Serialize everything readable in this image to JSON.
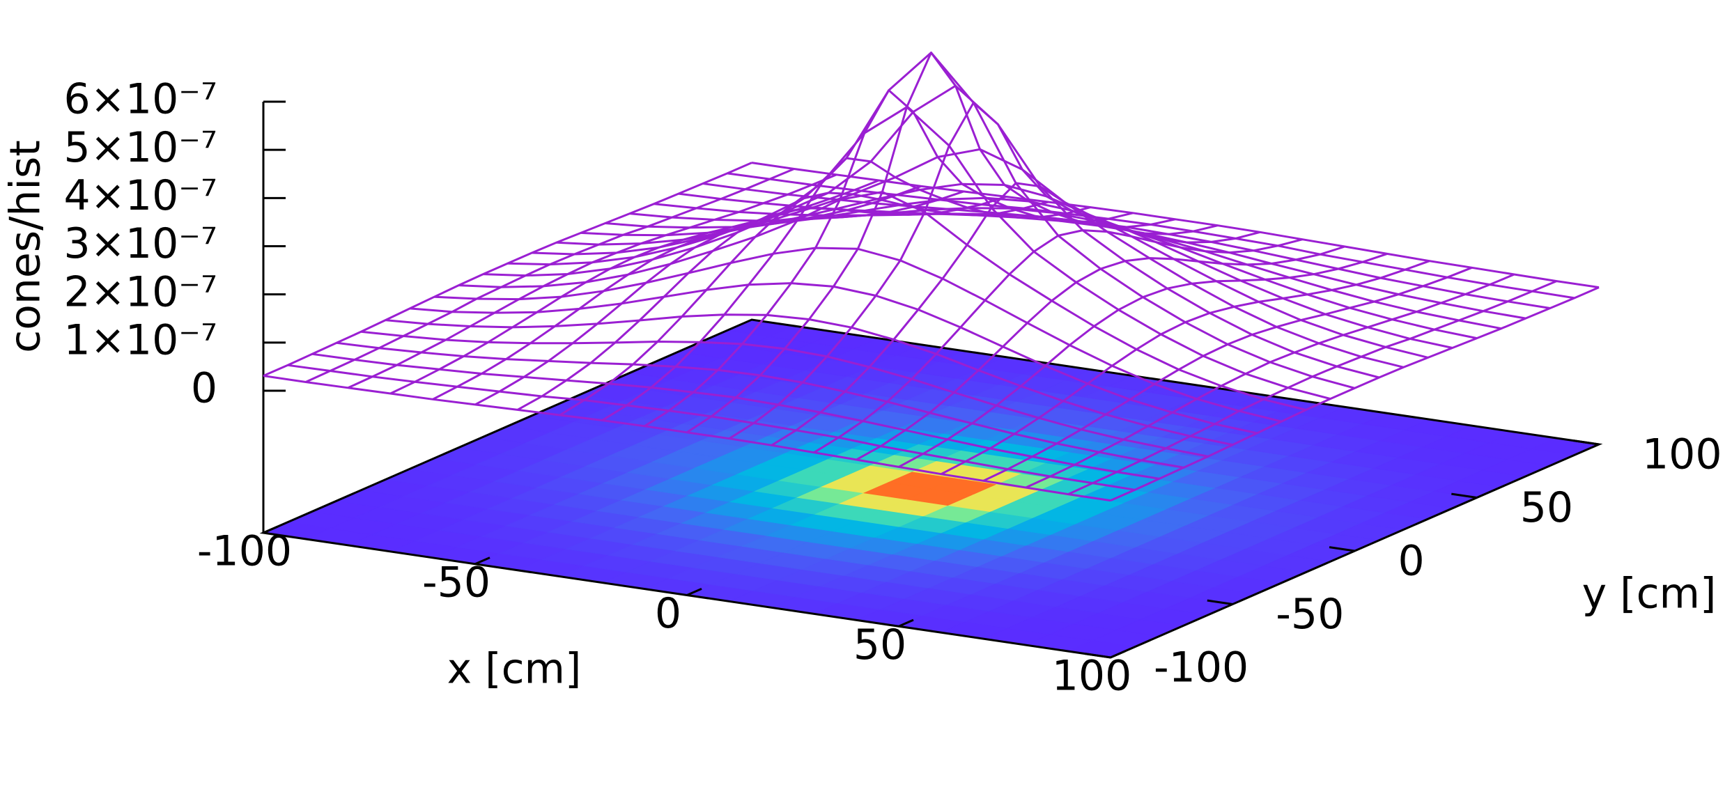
{
  "chart_data": {
    "type": "surface3d",
    "xlabel": "x [cm]",
    "ylabel": "y [cm]",
    "zlabel": "cones/hist",
    "color": "#9a1fd2",
    "x": [
      -100,
      -90,
      -80,
      -70,
      -60,
      -50,
      -40,
      -30,
      -20,
      -10,
      0,
      10,
      20,
      30,
      40,
      50,
      60,
      70,
      80,
      90,
      100
    ],
    "y": [
      -100,
      -90,
      -80,
      -70,
      -60,
      -50,
      -40,
      -30,
      -20,
      -10,
      0,
      10,
      20,
      30,
      40,
      50,
      60,
      70,
      80,
      90,
      100
    ],
    "z": [
      [
        3.1e-08,
        3.1e-08,
        3.2e-08,
        3.3e-08,
        3.4e-08,
        3.6e-08,
        3.8e-08,
        4e-08,
        4.2e-08,
        4.3e-08,
        4.3e-08,
        4.3e-08,
        4.2e-08,
        4e-08,
        3.8e-08,
        3.6e-08,
        3.4e-08,
        3.3e-08,
        3.2e-08,
        3.1e-08,
        3.1e-08
      ],
      [
        3.1e-08,
        3.2e-08,
        3.3e-08,
        3.5e-08,
        3.8e-08,
        4.1e-08,
        4.4e-08,
        4.9e-08,
        5.1e-08,
        5.3e-08,
        5.4e-08,
        5.3e-08,
        5.1e-08,
        4.9e-08,
        4.4e-08,
        4.1e-08,
        3.8e-08,
        3.5e-08,
        3.3e-08,
        3.2e-08,
        3.1e-08
      ],
      [
        3.2e-08,
        3.3e-08,
        3.5e-08,
        3.9e-08,
        4.3e-08,
        4.9e-08,
        5.5e-08,
        6.1e-08,
        6.6e-08,
        6.9e-08,
        7.1e-08,
        6.9e-08,
        6.6e-08,
        6.1e-08,
        5.5e-08,
        4.9e-08,
        4.3e-08,
        3.9e-08,
        3.5e-08,
        3.3e-08,
        3.2e-08
      ],
      [
        3.3e-08,
        3.5e-08,
        3.9e-08,
        4.4e-08,
        5.1e-08,
        6e-08,
        6.9e-08,
        7.9e-08,
        8.7e-08,
        9.3e-08,
        9.5e-08,
        9.3e-08,
        8.7e-08,
        7.9e-08,
        6.9e-08,
        6e-08,
        5.1e-08,
        4.4e-08,
        3.9e-08,
        3.5e-08,
        3.3e-08
      ],
      [
        3.4e-08,
        3.8e-08,
        4.3e-08,
        5.1e-08,
        6.2e-08,
        7.5e-08,
        8.9e-08,
        1.04e-07,
        1.16e-07,
        1.25e-07,
        1.28e-07,
        1.25e-07,
        1.16e-07,
        1.04e-07,
        8.9e-08,
        7.5e-08,
        6.2e-08,
        5.1e-08,
        4.3e-08,
        3.8e-08,
        3.4e-08
      ],
      [
        3.6e-08,
        4.1e-08,
        4.9e-08,
        6e-08,
        7.5e-08,
        9.3e-08,
        1.13e-07,
        1.34e-07,
        1.51e-07,
        1.63e-07,
        1.67e-07,
        1.63e-07,
        1.51e-07,
        1.34e-07,
        1.13e-07,
        9.3e-08,
        7.5e-08,
        6e-08,
        4.9e-08,
        4.1e-08,
        3.6e-08
      ],
      [
        3.8e-08,
        4.4e-08,
        5.5e-08,
        6.9e-08,
        8.9e-08,
        1.13e-07,
        1.4e-07,
        1.67e-07,
        1.91e-07,
        2.07e-07,
        2.13e-07,
        2.07e-07,
        1.91e-07,
        1.67e-07,
        1.4e-07,
        1.13e-07,
        8.9e-08,
        6.9e-08,
        5.5e-08,
        4.4e-08,
        3.8e-08
      ],
      [
        4e-08,
        4.9e-08,
        6.1e-08,
        7.9e-08,
        1.04e-07,
        1.34e-07,
        1.67e-07,
        2.01e-07,
        2.33e-07,
        2.58e-07,
        2.69e-07,
        2.58e-07,
        2.33e-07,
        2.01e-07,
        1.67e-07,
        1.34e-07,
        1.04e-07,
        7.9e-08,
        6.1e-08,
        4.9e-08,
        4e-08
      ],
      [
        4.2e-08,
        5.1e-08,
        6.6e-08,
        8.7e-08,
        1.16e-07,
        1.51e-07,
        1.91e-07,
        2.33e-07,
        2.81e-07,
        3.36e-07,
        3.65e-07,
        3.36e-07,
        2.81e-07,
        2.33e-07,
        1.91e-07,
        1.51e-07,
        1.16e-07,
        8.7e-08,
        6.6e-08,
        5.1e-08,
        4.2e-08
      ],
      [
        4.3e-08,
        5.3e-08,
        6.9e-08,
        9.3e-08,
        1.25e-07,
        1.63e-07,
        2.07e-07,
        2.58e-07,
        3.36e-07,
        4.52e-07,
        5.19e-07,
        4.52e-07,
        3.36e-07,
        2.58e-07,
        2.07e-07,
        1.63e-07,
        1.25e-07,
        9.3e-08,
        6.9e-08,
        5.3e-08,
        4.3e-08
      ],
      [
        4.3e-08,
        5.4e-08,
        7.1e-08,
        9.5e-08,
        1.28e-07,
        1.67e-07,
        2.13e-07,
        2.69e-07,
        3.65e-07,
        5.19e-07,
        6.1e-07,
        5.19e-07,
        3.65e-07,
        2.69e-07,
        2.13e-07,
        1.67e-07,
        1.28e-07,
        9.5e-08,
        7.1e-08,
        5.4e-08,
        4.3e-08
      ],
      [
        4.3e-08,
        5.3e-08,
        6.9e-08,
        9.3e-08,
        1.25e-07,
        1.63e-07,
        2.07e-07,
        2.58e-07,
        3.36e-07,
        4.52e-07,
        5.19e-07,
        4.52e-07,
        3.36e-07,
        2.58e-07,
        2.07e-07,
        1.63e-07,
        1.25e-07,
        9.3e-08,
        6.9e-08,
        5.3e-08,
        4.3e-08
      ],
      [
        4.2e-08,
        5.1e-08,
        6.6e-08,
        8.7e-08,
        1.16e-07,
        1.51e-07,
        1.91e-07,
        2.33e-07,
        2.81e-07,
        3.36e-07,
        3.65e-07,
        3.36e-07,
        2.81e-07,
        2.33e-07,
        1.91e-07,
        1.51e-07,
        1.16e-07,
        8.7e-08,
        6.6e-08,
        5.1e-08,
        4.2e-08
      ],
      [
        4e-08,
        4.9e-08,
        6.1e-08,
        7.9e-08,
        1.04e-07,
        1.34e-07,
        1.67e-07,
        2.01e-07,
        2.33e-07,
        2.58e-07,
        2.69e-07,
        2.58e-07,
        2.33e-07,
        2.01e-07,
        1.67e-07,
        1.34e-07,
        1.04e-07,
        7.9e-08,
        6.1e-08,
        4.9e-08,
        4e-08
      ],
      [
        3.8e-08,
        4.4e-08,
        5.5e-08,
        6.9e-08,
        8.9e-08,
        1.13e-07,
        1.4e-07,
        1.67e-07,
        1.91e-07,
        2.07e-07,
        2.13e-07,
        2.07e-07,
        1.91e-07,
        1.67e-07,
        1.4e-07,
        1.13e-07,
        8.9e-08,
        6.9e-08,
        5.5e-08,
        4.4e-08,
        3.8e-08
      ],
      [
        3.6e-08,
        4.1e-08,
        4.9e-08,
        6e-08,
        7.5e-08,
        9.3e-08,
        1.13e-07,
        1.34e-07,
        1.51e-07,
        1.63e-07,
        1.67e-07,
        1.63e-07,
        1.51e-07,
        1.34e-07,
        1.13e-07,
        9.3e-08,
        7.5e-08,
        6e-08,
        4.9e-08,
        4.1e-08,
        3.6e-08
      ],
      [
        3.4e-08,
        3.8e-08,
        4.3e-08,
        5.1e-08,
        6.2e-08,
        7.5e-08,
        8.9e-08,
        1.04e-07,
        1.16e-07,
        1.25e-07,
        1.28e-07,
        1.25e-07,
        1.16e-07,
        1.04e-07,
        8.9e-08,
        7.5e-08,
        6.2e-08,
        5.1e-08,
        4.3e-08,
        3.8e-08,
        3.4e-08
      ],
      [
        3.3e-08,
        3.5e-08,
        3.9e-08,
        4.4e-08,
        5.1e-08,
        6e-08,
        6.9e-08,
        7.9e-08,
        8.7e-08,
        9.3e-08,
        9.5e-08,
        9.3e-08,
        8.7e-08,
        7.9e-08,
        6.9e-08,
        6e-08,
        5.1e-08,
        4.4e-08,
        3.9e-08,
        3.5e-08,
        3.3e-08
      ],
      [
        3.2e-08,
        3.3e-08,
        3.5e-08,
        3.9e-08,
        4.3e-08,
        4.9e-08,
        5.5e-08,
        6.1e-08,
        6.6e-08,
        6.9e-08,
        7.1e-08,
        6.9e-08,
        6.6e-08,
        6.1e-08,
        5.5e-08,
        4.9e-08,
        4.3e-08,
        3.9e-08,
        3.5e-08,
        3.3e-08,
        3.2e-08
      ],
      [
        3.1e-08,
        3.2e-08,
        3.3e-08,
        3.5e-08,
        3.8e-08,
        4.1e-08,
        4.4e-08,
        4.9e-08,
        5.1e-08,
        5.3e-08,
        5.4e-08,
        5.3e-08,
        5.1e-08,
        4.9e-08,
        4.4e-08,
        4.1e-08,
        3.8e-08,
        3.5e-08,
        3.3e-08,
        3.2e-08,
        3.1e-08
      ],
      [
        3.1e-08,
        3.1e-08,
        3.2e-08,
        3.3e-08,
        3.4e-08,
        3.6e-08,
        3.8e-08,
        4e-08,
        4.2e-08,
        4.3e-08,
        4.3e-08,
        4.3e-08,
        4.2e-08,
        4e-08,
        3.8e-08,
        3.6e-08,
        3.4e-08,
        3.3e-08,
        3.2e-08,
        3.1e-08,
        3.1e-08
      ]
    ],
    "xlim": [
      -100,
      100
    ],
    "ylim": [
      -100,
      100
    ],
    "zlim": [
      0,
      6e-07
    ],
    "xticks": [
      -100,
      -50,
      0,
      50,
      100
    ],
    "yticks": [
      -100,
      -50,
      0,
      50,
      100
    ],
    "zticks": [
      0,
      {
        "value": 1e-07,
        "label": "1×10⁻⁷"
      },
      {
        "value": 2e-07,
        "label": "2×10⁻⁷"
      },
      {
        "value": 3e-07,
        "label": "3×10⁻⁷"
      },
      {
        "value": 4e-07,
        "label": "4×10⁻⁷"
      },
      {
        "value": 5e-07,
        "label": "5×10⁻⁷"
      },
      {
        "value": 6e-07,
        "label": "6×10⁻⁷"
      }
    ],
    "base_map": true
  }
}
